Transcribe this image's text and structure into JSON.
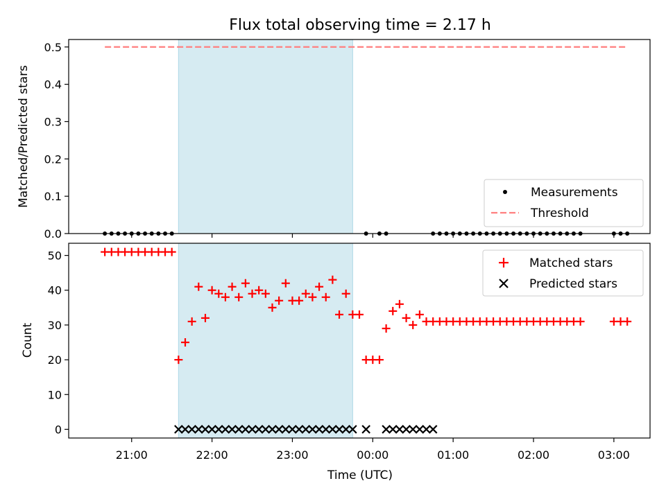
{
  "chart_data": [
    {
      "type": "scatter",
      "title": "Flux total observing time = 2.17 h",
      "xlabel": "",
      "ylabel": "Matched/Predicted stars",
      "ylim": [
        0,
        0.52
      ],
      "yticks": [
        0.0,
        0.1,
        0.2,
        0.3,
        0.4,
        0.5
      ],
      "ytick_labels": [
        "0.0",
        "0.1",
        "0.2",
        "0.3",
        "0.4",
        "0.5"
      ],
      "shaded_interval": [
        "21:35",
        "23:45"
      ],
      "legend_position": "lower-right",
      "series": [
        {
          "name": "Measurements",
          "marker": "dot",
          "color": "#000000",
          "x": [
            "20:40",
            "20:45",
            "20:50",
            "20:55",
            "21:00",
            "21:05",
            "21:10",
            "21:15",
            "21:20",
            "21:25",
            "21:30",
            "23:55",
            "24:05",
            "24:10",
            "24:45",
            "24:50",
            "24:55",
            "25:00",
            "25:05",
            "25:10",
            "25:15",
            "25:20",
            "25:25",
            "25:30",
            "25:35",
            "25:40",
            "25:45",
            "25:50",
            "25:55",
            "26:00",
            "26:05",
            "26:10",
            "26:15",
            "26:20",
            "26:25",
            "26:30",
            "26:35",
            "27:00",
            "27:05",
            "27:10"
          ],
          "y": [
            0,
            0,
            0,
            0,
            0,
            0,
            0,
            0,
            0,
            0,
            0,
            0,
            0,
            0,
            0,
            0,
            0,
            0,
            0,
            0,
            0,
            0,
            0,
            0,
            0,
            0,
            0,
            0,
            0,
            0,
            0,
            0,
            0,
            0,
            0,
            0,
            0,
            0,
            0,
            0
          ]
        },
        {
          "name": "Threshold",
          "marker": "dashed-line",
          "color": "#ff7f7f",
          "x": [
            "20:40",
            "27:10"
          ],
          "y": [
            0.5,
            0.5
          ]
        }
      ]
    },
    {
      "type": "scatter",
      "title": "",
      "xlabel": "Time (UTC)",
      "ylabel": "Count",
      "ylim": [
        -2.5,
        53.5
      ],
      "yticks": [
        0,
        10,
        20,
        30,
        40,
        50
      ],
      "ytick_labels": [
        "0",
        "10",
        "20",
        "30",
        "40",
        "50"
      ],
      "xlim": [
        "20:13",
        "03:27"
      ],
      "xticks": [
        "21:00",
        "22:00",
        "23:00",
        "24:00",
        "25:00",
        "26:00",
        "27:00"
      ],
      "xtick_labels": [
        "21:00",
        "22:00",
        "23:00",
        "00:00",
        "01:00",
        "02:00",
        "03:00"
      ],
      "shaded_interval": [
        "21:35",
        "23:45"
      ],
      "legend_position": "upper-right",
      "series": [
        {
          "name": "Matched stars",
          "marker": "plus",
          "color": "#ff0000",
          "x": [
            "20:40",
            "20:45",
            "20:50",
            "20:55",
            "21:00",
            "21:05",
            "21:10",
            "21:15",
            "21:20",
            "21:25",
            "21:30",
            "21:35",
            "21:40",
            "21:45",
            "21:50",
            "21:55",
            "22:00",
            "22:05",
            "22:10",
            "22:15",
            "22:20",
            "22:25",
            "22:30",
            "22:35",
            "22:40",
            "22:45",
            "22:50",
            "22:55",
            "23:00",
            "23:05",
            "23:10",
            "23:15",
            "23:20",
            "23:25",
            "23:30",
            "23:35",
            "23:40",
            "23:45",
            "23:50",
            "23:55",
            "24:00",
            "24:05",
            "24:10",
            "24:15",
            "24:20",
            "24:25",
            "24:30",
            "24:35",
            "24:40",
            "24:45",
            "24:50",
            "24:55",
            "25:00",
            "25:05",
            "25:10",
            "25:15",
            "25:20",
            "25:25",
            "25:30",
            "25:35",
            "25:40",
            "25:45",
            "25:50",
            "25:55",
            "26:00",
            "26:05",
            "26:10",
            "26:15",
            "26:20",
            "26:25",
            "26:30",
            "26:35",
            "27:00",
            "27:05",
            "27:10"
          ],
          "y": [
            51,
            51,
            51,
            51,
            51,
            51,
            51,
            51,
            51,
            51,
            51,
            20,
            25,
            31,
            41,
            32,
            40,
            39,
            38,
            41,
            38,
            42,
            39,
            40,
            39,
            35,
            37,
            42,
            37,
            37,
            39,
            38,
            41,
            38,
            43,
            33,
            39,
            33,
            33,
            20,
            20,
            20,
            29,
            34,
            36,
            32,
            30,
            33,
            31,
            31,
            31,
            31,
            31,
            31,
            31,
            31,
            31,
            31,
            31,
            31,
            31,
            31,
            31,
            31,
            31,
            31,
            31,
            31,
            31,
            31,
            31,
            31,
            31,
            31,
            31
          ]
        },
        {
          "name": "Predicted stars",
          "marker": "x",
          "color": "#000000",
          "x": [
            "21:35",
            "21:40",
            "21:45",
            "21:50",
            "21:55",
            "22:00",
            "22:05",
            "22:10",
            "22:15",
            "22:20",
            "22:25",
            "22:30",
            "22:35",
            "22:40",
            "22:45",
            "22:50",
            "22:55",
            "23:00",
            "23:05",
            "23:10",
            "23:15",
            "23:20",
            "23:25",
            "23:30",
            "23:35",
            "23:40",
            "23:45",
            "23:55",
            "24:10",
            "24:15",
            "24:20",
            "24:25",
            "24:30",
            "24:35",
            "24:40",
            "24:45"
          ],
          "y": [
            0,
            0,
            0,
            0,
            0,
            0,
            0,
            0,
            0,
            0,
            0,
            0,
            0,
            0,
            0,
            0,
            0,
            0,
            0,
            0,
            0,
            0,
            0,
            0,
            0,
            0,
            0,
            0,
            0,
            0,
            0,
            0,
            0,
            0,
            0,
            0
          ]
        }
      ]
    }
  ]
}
